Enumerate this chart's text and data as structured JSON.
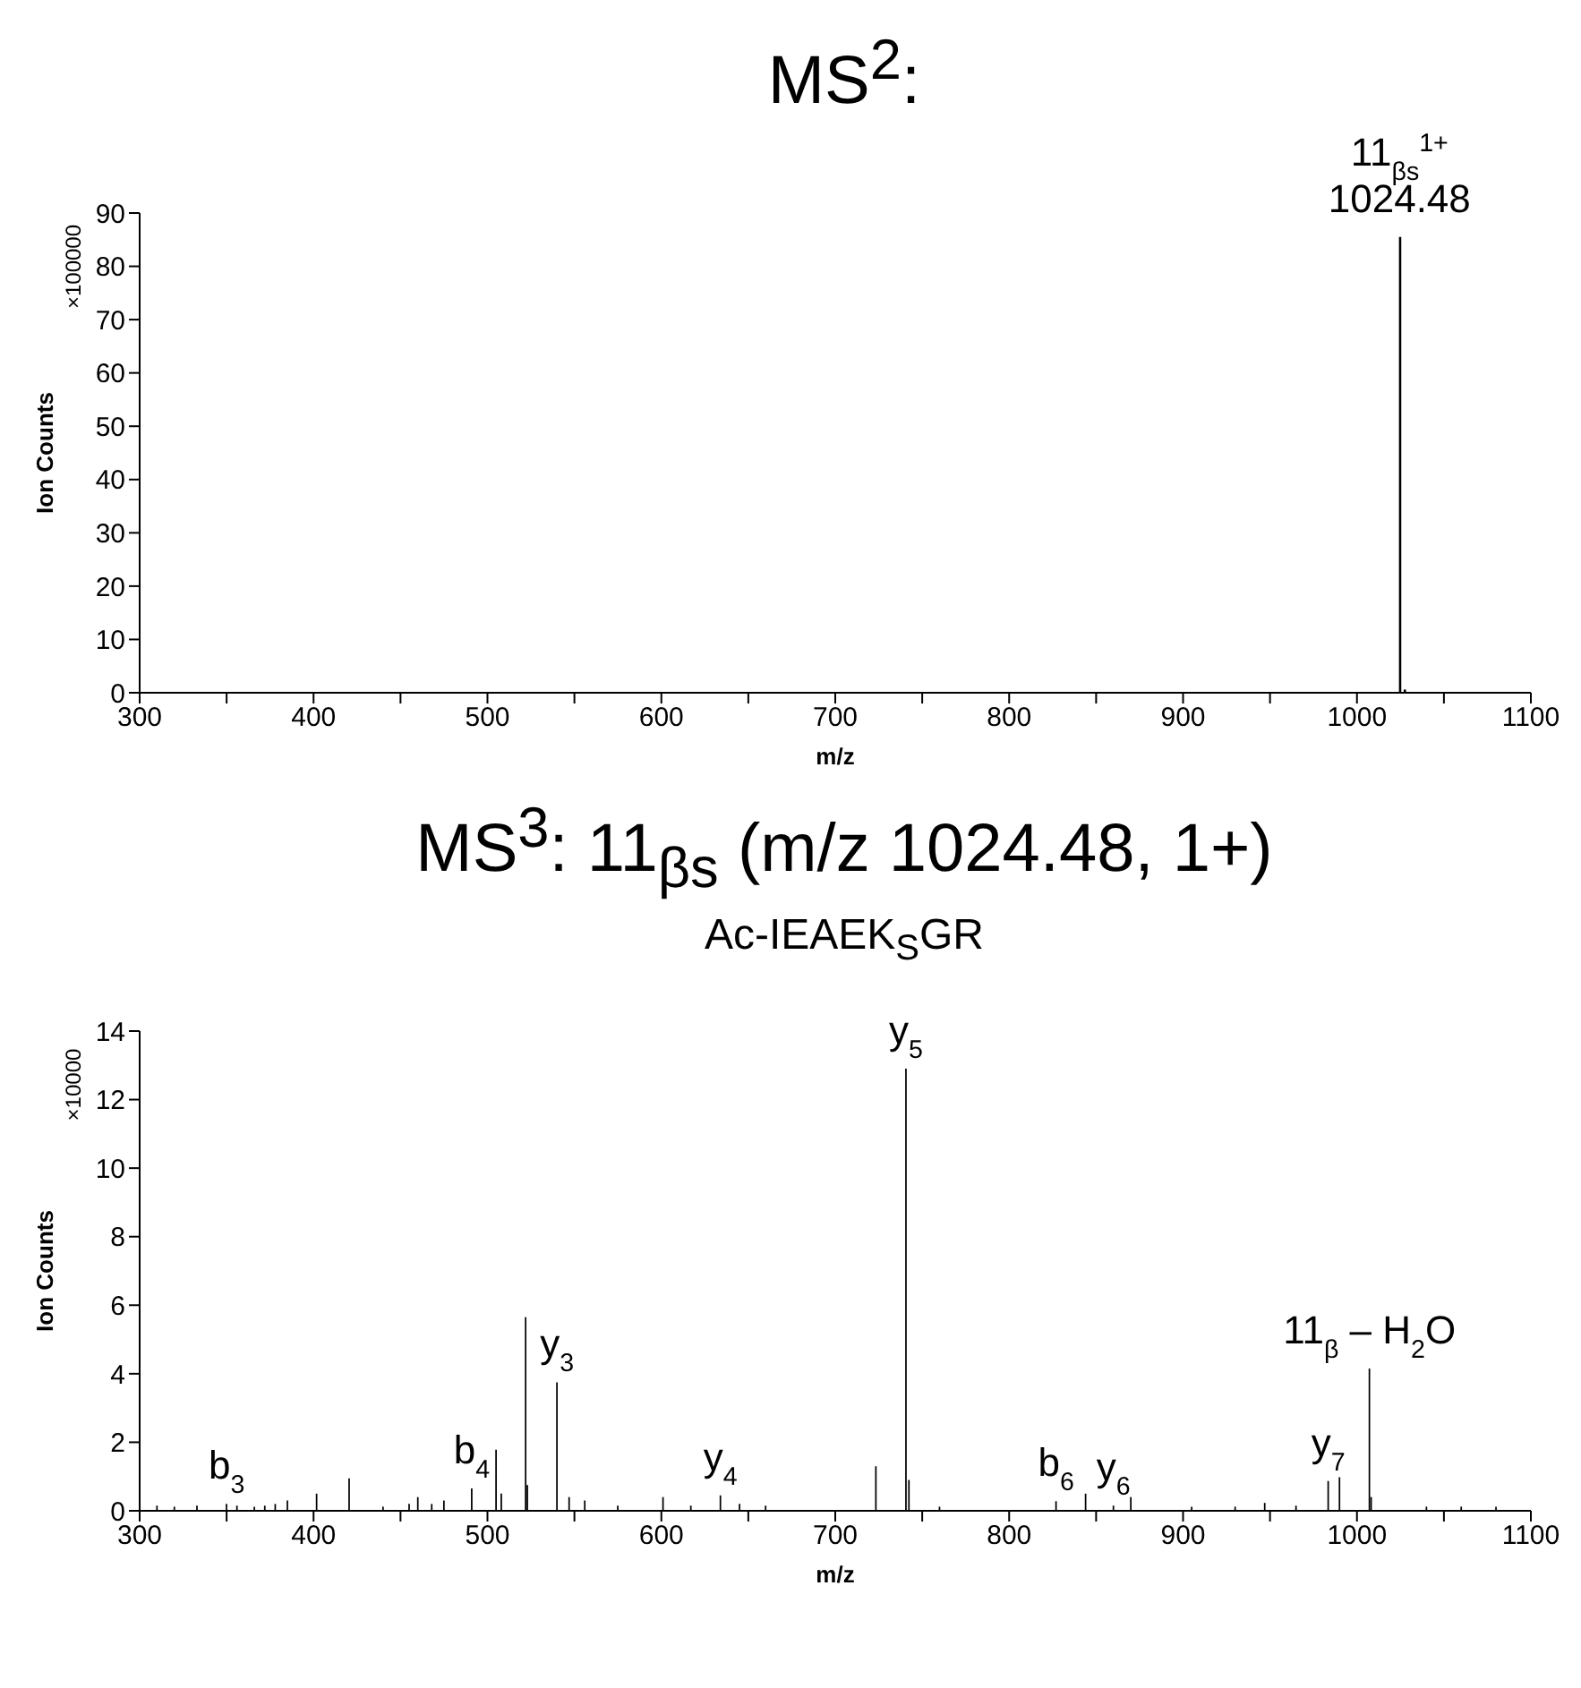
{
  "chart_data": [
    {
      "type": "bar",
      "title": "MS$^{2}$:",
      "xlabel": "m/z",
      "ylabel": "Ion Counts",
      "color": "#000000",
      "x": [
        1024.48,
        1027.2
      ],
      "values": [
        85.5,
        0.6
      ],
      "xlim": [
        300,
        1100
      ],
      "xticks": [
        300,
        {
          "value": 350,
          "label": null
        },
        400,
        {
          "value": 450,
          "label": null
        },
        500,
        {
          "value": 550,
          "label": null
        },
        600,
        {
          "value": 650,
          "label": null
        },
        700,
        {
          "value": 750,
          "label": null
        },
        800,
        {
          "value": 850,
          "label": null
        },
        900,
        {
          "value": 950,
          "label": null
        },
        1000,
        {
          "value": 1050,
          "label": null
        },
        1100
      ],
      "ylim": [
        0,
        90
      ],
      "yticks": [
        0,
        10,
        20,
        30,
        40,
        50,
        60,
        70,
        80,
        90
      ],
      "annotations": [
        "×100000",
        {
          "text": "11$_{βs}$$^{1+}$\n1024.48",
          "x": 1024.48,
          "y": 85.5
        }
      ]
    },
    {
      "type": "bar",
      "title": "MS$^{3}$: 11$_{βs}$ (m/z 1024.48, 1+)",
      "subtitle": "Ac-IEAEK$_{S}$GR",
      "xlabel": "m/z",
      "ylabel": "Ion Counts",
      "color": "#000000",
      "x": [
        310,
        320,
        333,
        350,
        356,
        366,
        372,
        378,
        385,
        401.8,
        420.5,
        440,
        455,
        460,
        468,
        475,
        491,
        505,
        508,
        522,
        523,
        540,
        547,
        556,
        575,
        601,
        617,
        634,
        645,
        660,
        723.4,
        740.7,
        742.4,
        760,
        827,
        844,
        860,
        870,
        905,
        930,
        947,
        965,
        983.5,
        990,
        1007.2,
        1008.2,
        1040,
        1060,
        1080
      ],
      "values": [
        0.15,
        0.12,
        0.15,
        0.2,
        0.15,
        0.12,
        0.15,
        0.2,
        0.3,
        0.5,
        0.95,
        0.12,
        0.2,
        0.4,
        0.2,
        0.3,
        0.65,
        1.78,
        0.5,
        5.65,
        0.75,
        3.75,
        0.4,
        0.3,
        0.15,
        0.4,
        0.15,
        0.45,
        0.2,
        0.15,
        1.3,
        12.9,
        0.9,
        0.12,
        0.28,
        0.5,
        0.15,
        0.4,
        0.12,
        0.12,
        0.23,
        0.15,
        0.87,
        0.98,
        4.15,
        0.4,
        0.12,
        0.12,
        0.12
      ],
      "xlim": [
        300,
        1100
      ],
      "xticks": [
        300,
        {
          "value": 350,
          "label": null
        },
        400,
        {
          "value": 450,
          "label": null
        },
        500,
        {
          "value": 550,
          "label": null
        },
        600,
        {
          "value": 650,
          "label": null
        },
        700,
        {
          "value": 750,
          "label": null
        },
        800,
        {
          "value": 850,
          "label": null
        },
        900,
        {
          "value": 950,
          "label": null
        },
        1000,
        {
          "value": 1050,
          "label": null
        },
        1100
      ],
      "ylim": [
        0,
        14
      ],
      "yticks": [
        0,
        2,
        4,
        6,
        8,
        10,
        12,
        14
      ],
      "annotations": [
        "×10000",
        {
          "text": "b$_{3}$",
          "x": 350,
          "y": 0.2
        },
        {
          "text": "b$_{4}$",
          "x": 491,
          "y": 0.65
        },
        {
          "text": "y$_{3}$",
          "x": 540,
          "y": 3.75
        },
        {
          "text": "y$_{4}$",
          "x": 634,
          "y": 0.45
        },
        {
          "text": "y$_{5}$",
          "x": 740.7,
          "y": 12.9
        },
        {
          "text": "b$_{6}$",
          "x": 827,
          "y": 0.28
        },
        {
          "text": "y$_{6}$",
          "x": 860,
          "y": 0.15
        },
        {
          "text": "y$_{7}$",
          "x": 983.5,
          "y": 0.87
        },
        {
          "text": "11$_{β}$ – H$_{2}$O",
          "x": 1007.2,
          "y": 4.15
        }
      ]
    }
  ]
}
